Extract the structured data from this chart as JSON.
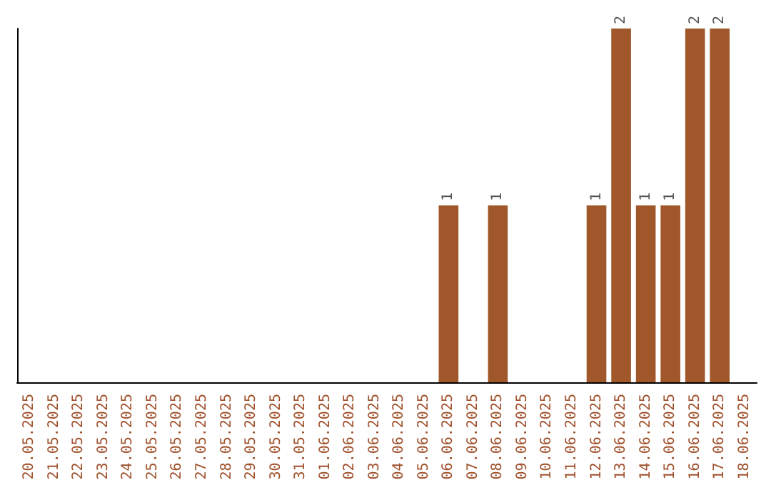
{
  "chart_data": {
    "type": "bar",
    "categories": [
      "20.05.2025",
      "21.05.2025",
      "22.05.2025",
      "23.05.2025",
      "24.05.2025",
      "25.05.2025",
      "26.05.2025",
      "27.05.2025",
      "28.05.2025",
      "29.05.2025",
      "30.05.2025",
      "31.05.2025",
      "01.06.2025",
      "02.06.2025",
      "03.06.2025",
      "04.06.2025",
      "05.06.2025",
      "06.06.2025",
      "07.06.2025",
      "08.06.2025",
      "09.06.2025",
      "10.06.2025",
      "11.06.2025",
      "12.06.2025",
      "13.06.2025",
      "14.06.2025",
      "15.06.2025",
      "16.06.2025",
      "17.06.2025",
      "18.06.2025"
    ],
    "values": [
      null,
      null,
      null,
      null,
      null,
      null,
      null,
      null,
      null,
      null,
      null,
      null,
      null,
      null,
      null,
      null,
      null,
      1,
      null,
      1,
      null,
      null,
      null,
      1,
      2,
      1,
      1,
      2,
      2,
      null
    ],
    "color": "#a0582a",
    "data_labels": true,
    "tick_labels": "x"
  }
}
